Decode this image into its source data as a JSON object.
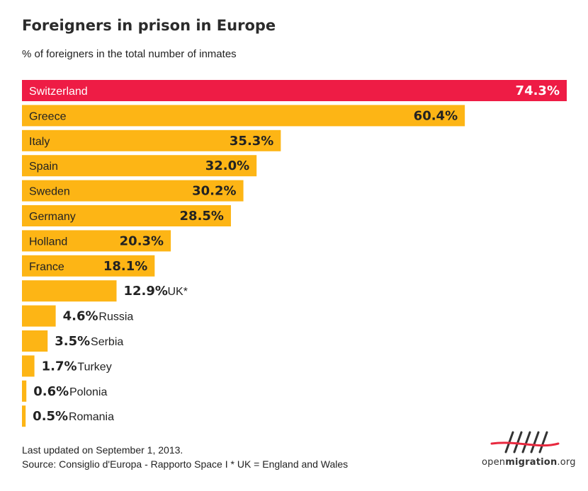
{
  "header": {
    "title": "Foreigners in prison in Europe",
    "subtitle": "% of foreigners in the total number of inmates"
  },
  "footer": {
    "updated": "Last updated on September 1, 2013.",
    "source": "Source: Consiglio d'Europa - Rapporto Space I   * UK = England and Wales"
  },
  "logo": {
    "text_light": "open",
    "text_bold": "migration",
    "text_suffix": ".org",
    "icon": "tally-marks-icon"
  },
  "colors": {
    "highlight": "#ee1c45",
    "bar": "#fdb515",
    "text": "#222222",
    "value_on_highlight": "#ffffff",
    "logo_red": "#e8283e"
  },
  "chart_data": {
    "type": "bar",
    "orientation": "horizontal",
    "unit": "%",
    "xlim": [
      0,
      74.3
    ],
    "grid": false,
    "legend": "none",
    "categories": [
      "Switzerland",
      "Greece",
      "Italy",
      "Spain",
      "Sweden",
      "Germany",
      "Holland",
      "France",
      "UK*",
      "Russia",
      "Serbia",
      "Turkey",
      "Polonia",
      "Romania"
    ],
    "values": [
      74.3,
      60.4,
      35.3,
      32.0,
      30.2,
      28.5,
      20.3,
      18.1,
      12.9,
      4.6,
      3.5,
      1.7,
      0.6,
      0.5
    ],
    "value_labels": [
      "74.3%",
      "60.4%",
      "35.3%",
      "32.0%",
      "30.2%",
      "28.5%",
      "20.3%",
      "18.1%",
      "12.9%",
      "4.6%",
      "3.5%",
      "1.7%",
      "0.6%",
      "0.5%"
    ],
    "highlighted": [
      "Switzerland"
    ]
  }
}
